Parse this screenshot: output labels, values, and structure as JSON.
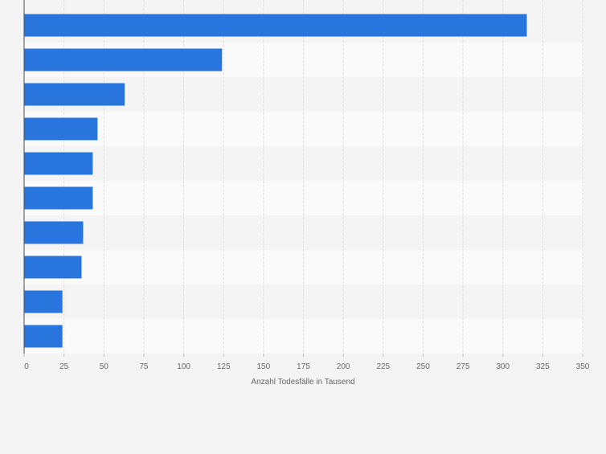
{
  "chart_data": {
    "type": "bar",
    "orientation": "horizontal",
    "categories": [
      "",
      "",
      "",
      "",
      "",
      "",
      "",
      "",
      "",
      ""
    ],
    "values": [
      315,
      124,
      63,
      46,
      43,
      43,
      37,
      36,
      24,
      24
    ],
    "xlabel": "Anzahl Todesfälle in Tausend",
    "ylabel": "",
    "xlim": [
      0,
      350
    ],
    "xticks": [
      0,
      25,
      50,
      75,
      100,
      125,
      150,
      175,
      200,
      225,
      250,
      275,
      300,
      325,
      350
    ],
    "grid": true,
    "legend": "none",
    "colors": {
      "bar": "#2876dd",
      "band_light": "#fafafa",
      "band_dark": "#f4f4f4",
      "grid": "#dedede",
      "axis": "#4d4d4d",
      "tick_label": "#666666"
    }
  }
}
